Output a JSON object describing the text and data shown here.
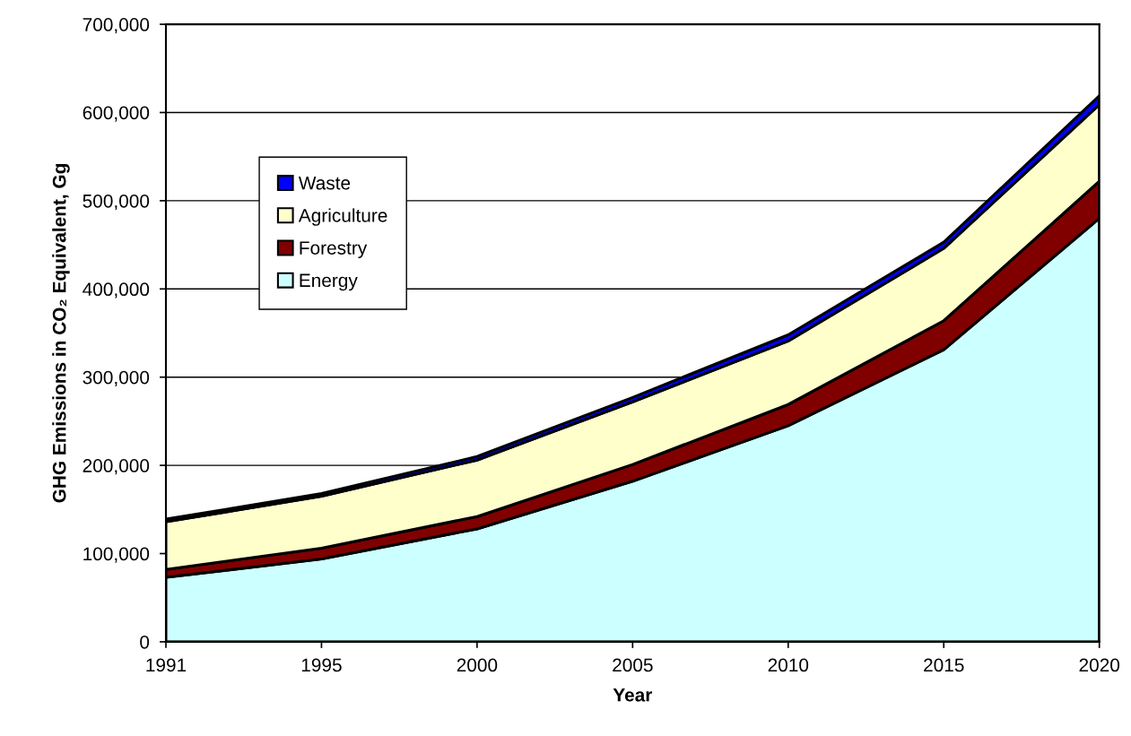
{
  "chart_data": {
    "type": "area",
    "stacked": true,
    "xlabel": "Year",
    "ylabel": "GHG Emissions in CO₂ Equivalent, Gg",
    "categories": [
      "1991",
      "1995",
      "2000",
      "2005",
      "2010",
      "2015",
      "2020"
    ],
    "series": [
      {
        "name": "Energy",
        "color": "#ccffff",
        "values": [
          73000,
          94000,
          128000,
          182000,
          245000,
          331000,
          480000
        ]
      },
      {
        "name": "Forestry",
        "color": "#800000",
        "values": [
          9000,
          12000,
          14000,
          19000,
          24000,
          33000,
          42000
        ]
      },
      {
        "name": "Agriculture",
        "color": "#ffffcc",
        "values": [
          54000,
          59000,
          64000,
          71000,
          72000,
          82000,
          87000
        ]
      },
      {
        "name": "Waste",
        "color": "#0000ff",
        "values": [
          3000,
          3000,
          4000,
          5000,
          7000,
          7000,
          10000
        ]
      }
    ],
    "ylim": [
      0,
      700000
    ],
    "yticks": [
      {
        "value": 0,
        "label": "0"
      },
      {
        "value": 100000,
        "label": "100,000"
      },
      {
        "value": 200000,
        "label": "200,000"
      },
      {
        "value": 300000,
        "label": "300,000"
      },
      {
        "value": 400000,
        "label": "400,000"
      },
      {
        "value": 500000,
        "label": "500,000"
      },
      {
        "value": 600000,
        "label": "600,000"
      },
      {
        "value": 700000,
        "label": "700,000"
      }
    ],
    "grid": "y",
    "legend": "top left"
  }
}
